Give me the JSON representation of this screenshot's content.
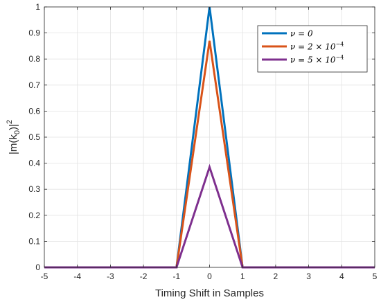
{
  "chart_data": {
    "type": "line",
    "xlabel": "Timing Shift in Samples",
    "ylabel_base": "|m(k",
    "ylabel_sub": "0",
    "ylabel_close": ")|",
    "ylabel_sup": "2",
    "xlim": [
      -5,
      5
    ],
    "ylim": [
      0,
      1
    ],
    "xticks": [
      -5,
      -4,
      -3,
      -2,
      -1,
      0,
      1,
      2,
      3,
      4,
      5
    ],
    "yticks": [
      0,
      0.1,
      0.2,
      0.3,
      0.4,
      0.5,
      0.6,
      0.7,
      0.8,
      0.9,
      1
    ],
    "grid": true,
    "legend_position": "top-right",
    "x": [
      -5,
      -4,
      -3,
      -2,
      -1,
      0,
      1,
      2,
      3,
      4,
      5
    ],
    "series": [
      {
        "name": "ν = 0",
        "legend_parts": [
          "ν = 0"
        ],
        "color": "#0072BD",
        "values": [
          0,
          0,
          0,
          0,
          0,
          1.0,
          0,
          0,
          0,
          0,
          0
        ]
      },
      {
        "name": "ν = 2 × 10⁻⁴",
        "legend_parts": [
          "ν = 2 × 10",
          "−4"
        ],
        "color": "#D95319",
        "values": [
          0,
          0,
          0,
          0,
          0,
          0.87,
          0,
          0,
          0,
          0,
          0
        ]
      },
      {
        "name": "ν = 5 × 10⁻⁴",
        "legend_parts": [
          "ν = 5 × 10",
          "−4"
        ],
        "color": "#7E2F8E",
        "values": [
          0,
          0,
          0,
          0,
          0,
          0.385,
          0,
          0,
          0,
          0,
          0
        ]
      }
    ]
  }
}
